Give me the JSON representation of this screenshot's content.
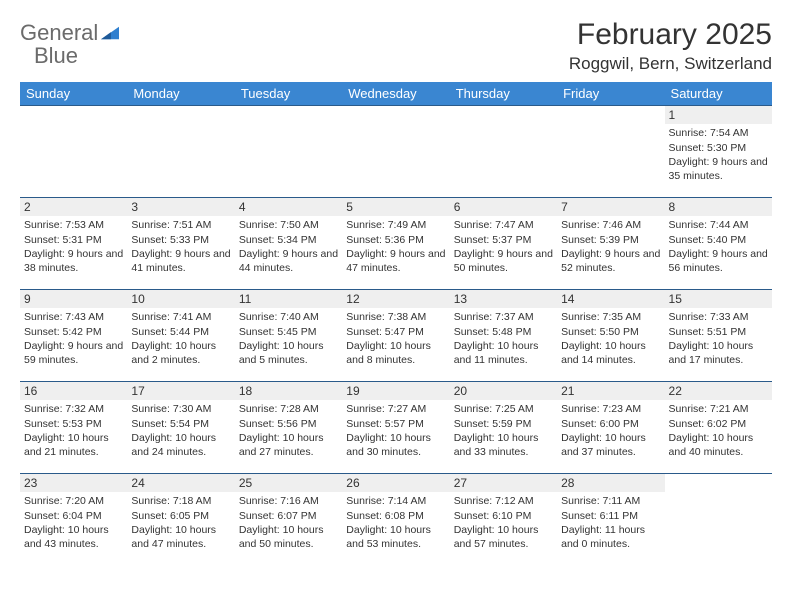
{
  "logo": {
    "word1": "General",
    "word2": "Blue"
  },
  "title": "February 2025",
  "location": "Roggwil, Bern, Switzerland",
  "colors": {
    "header_bg": "#3a86d1",
    "header_text": "#ffffff",
    "daynum_bg": "#efefef",
    "border": "#2a5a8a",
    "logo_gray": "#6b6b6b",
    "logo_blue": "#2f7fcf"
  },
  "weekdays": [
    "Sunday",
    "Monday",
    "Tuesday",
    "Wednesday",
    "Thursday",
    "Friday",
    "Saturday"
  ],
  "weeks": [
    [
      null,
      null,
      null,
      null,
      null,
      null,
      {
        "n": "1",
        "sr": "Sunrise: 7:54 AM",
        "ss": "Sunset: 5:30 PM",
        "dl": "Daylight: 9 hours and 35 minutes."
      }
    ],
    [
      {
        "n": "2",
        "sr": "Sunrise: 7:53 AM",
        "ss": "Sunset: 5:31 PM",
        "dl": "Daylight: 9 hours and 38 minutes."
      },
      {
        "n": "3",
        "sr": "Sunrise: 7:51 AM",
        "ss": "Sunset: 5:33 PM",
        "dl": "Daylight: 9 hours and 41 minutes."
      },
      {
        "n": "4",
        "sr": "Sunrise: 7:50 AM",
        "ss": "Sunset: 5:34 PM",
        "dl": "Daylight: 9 hours and 44 minutes."
      },
      {
        "n": "5",
        "sr": "Sunrise: 7:49 AM",
        "ss": "Sunset: 5:36 PM",
        "dl": "Daylight: 9 hours and 47 minutes."
      },
      {
        "n": "6",
        "sr": "Sunrise: 7:47 AM",
        "ss": "Sunset: 5:37 PM",
        "dl": "Daylight: 9 hours and 50 minutes."
      },
      {
        "n": "7",
        "sr": "Sunrise: 7:46 AM",
        "ss": "Sunset: 5:39 PM",
        "dl": "Daylight: 9 hours and 52 minutes."
      },
      {
        "n": "8",
        "sr": "Sunrise: 7:44 AM",
        "ss": "Sunset: 5:40 PM",
        "dl": "Daylight: 9 hours and 56 minutes."
      }
    ],
    [
      {
        "n": "9",
        "sr": "Sunrise: 7:43 AM",
        "ss": "Sunset: 5:42 PM",
        "dl": "Daylight: 9 hours and 59 minutes."
      },
      {
        "n": "10",
        "sr": "Sunrise: 7:41 AM",
        "ss": "Sunset: 5:44 PM",
        "dl": "Daylight: 10 hours and 2 minutes."
      },
      {
        "n": "11",
        "sr": "Sunrise: 7:40 AM",
        "ss": "Sunset: 5:45 PM",
        "dl": "Daylight: 10 hours and 5 minutes."
      },
      {
        "n": "12",
        "sr": "Sunrise: 7:38 AM",
        "ss": "Sunset: 5:47 PM",
        "dl": "Daylight: 10 hours and 8 minutes."
      },
      {
        "n": "13",
        "sr": "Sunrise: 7:37 AM",
        "ss": "Sunset: 5:48 PM",
        "dl": "Daylight: 10 hours and 11 minutes."
      },
      {
        "n": "14",
        "sr": "Sunrise: 7:35 AM",
        "ss": "Sunset: 5:50 PM",
        "dl": "Daylight: 10 hours and 14 minutes."
      },
      {
        "n": "15",
        "sr": "Sunrise: 7:33 AM",
        "ss": "Sunset: 5:51 PM",
        "dl": "Daylight: 10 hours and 17 minutes."
      }
    ],
    [
      {
        "n": "16",
        "sr": "Sunrise: 7:32 AM",
        "ss": "Sunset: 5:53 PM",
        "dl": "Daylight: 10 hours and 21 minutes."
      },
      {
        "n": "17",
        "sr": "Sunrise: 7:30 AM",
        "ss": "Sunset: 5:54 PM",
        "dl": "Daylight: 10 hours and 24 minutes."
      },
      {
        "n": "18",
        "sr": "Sunrise: 7:28 AM",
        "ss": "Sunset: 5:56 PM",
        "dl": "Daylight: 10 hours and 27 minutes."
      },
      {
        "n": "19",
        "sr": "Sunrise: 7:27 AM",
        "ss": "Sunset: 5:57 PM",
        "dl": "Daylight: 10 hours and 30 minutes."
      },
      {
        "n": "20",
        "sr": "Sunrise: 7:25 AM",
        "ss": "Sunset: 5:59 PM",
        "dl": "Daylight: 10 hours and 33 minutes."
      },
      {
        "n": "21",
        "sr": "Sunrise: 7:23 AM",
        "ss": "Sunset: 6:00 PM",
        "dl": "Daylight: 10 hours and 37 minutes."
      },
      {
        "n": "22",
        "sr": "Sunrise: 7:21 AM",
        "ss": "Sunset: 6:02 PM",
        "dl": "Daylight: 10 hours and 40 minutes."
      }
    ],
    [
      {
        "n": "23",
        "sr": "Sunrise: 7:20 AM",
        "ss": "Sunset: 6:04 PM",
        "dl": "Daylight: 10 hours and 43 minutes."
      },
      {
        "n": "24",
        "sr": "Sunrise: 7:18 AM",
        "ss": "Sunset: 6:05 PM",
        "dl": "Daylight: 10 hours and 47 minutes."
      },
      {
        "n": "25",
        "sr": "Sunrise: 7:16 AM",
        "ss": "Sunset: 6:07 PM",
        "dl": "Daylight: 10 hours and 50 minutes."
      },
      {
        "n": "26",
        "sr": "Sunrise: 7:14 AM",
        "ss": "Sunset: 6:08 PM",
        "dl": "Daylight: 10 hours and 53 minutes."
      },
      {
        "n": "27",
        "sr": "Sunrise: 7:12 AM",
        "ss": "Sunset: 6:10 PM",
        "dl": "Daylight: 10 hours and 57 minutes."
      },
      {
        "n": "28",
        "sr": "Sunrise: 7:11 AM",
        "ss": "Sunset: 6:11 PM",
        "dl": "Daylight: 11 hours and 0 minutes."
      },
      null
    ]
  ]
}
